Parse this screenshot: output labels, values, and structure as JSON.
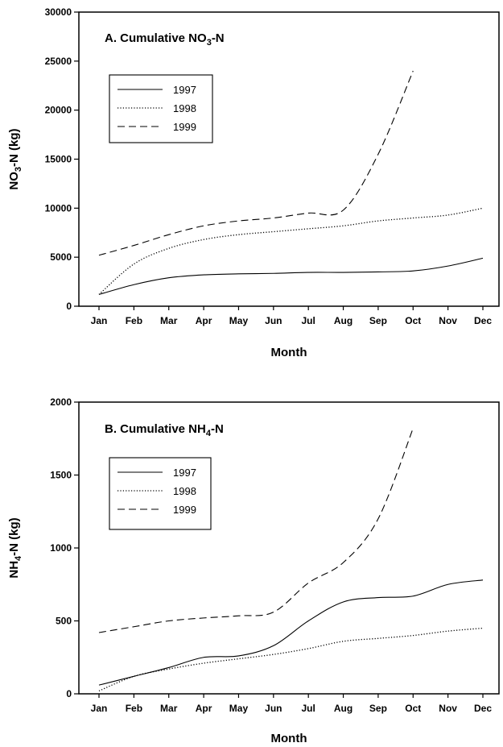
{
  "chart_data": [
    {
      "type": "line",
      "title": "A.  Cumulative NO3-N",
      "title_parts": {
        "prefix": "A.  Cumulative NO",
        "sub": "3",
        "suffix": "-N"
      },
      "xlabel": "Month",
      "ylabel": "NO3-N (kg)",
      "ylabel_parts": {
        "prefix": "NO",
        "sub": "3",
        "suffix": "-N (kg)"
      },
      "categories": [
        "Jan",
        "Feb",
        "Mar",
        "Apr",
        "May",
        "Jun",
        "Jul",
        "Aug",
        "Sep",
        "Oct",
        "Nov",
        "Dec"
      ],
      "ylim": [
        0,
        30000
      ],
      "yticks": [
        "0",
        "5000",
        "10000",
        "15000",
        "20000",
        "25000",
        "30000"
      ],
      "legend_position": "upper-left",
      "series": [
        {
          "name": "1997",
          "style": "solid",
          "values": [
            1200,
            2200,
            2900,
            3200,
            3300,
            3350,
            3450,
            3450,
            3500,
            3600,
            4100,
            4900
          ]
        },
        {
          "name": "1998",
          "style": "dotted",
          "values": [
            1200,
            4300,
            5900,
            6800,
            7300,
            7600,
            7900,
            8200,
            8700,
            9000,
            9300,
            10000
          ]
        },
        {
          "name": "1999",
          "style": "dashed",
          "values": [
            5200,
            6200,
            7300,
            8200,
            8700,
            9000,
            9500,
            9800,
            15500,
            24000,
            null,
            null
          ]
        }
      ]
    },
    {
      "type": "line",
      "title": "B.  Cumulative NH4-N",
      "title_parts": {
        "prefix": "B.  Cumulative NH",
        "sub": "4",
        "suffix": "-N"
      },
      "xlabel": "Month",
      "ylabel": "NH4-N (kg)",
      "ylabel_parts": {
        "prefix": "NH",
        "sub": "4",
        "suffix": "-N (kg)"
      },
      "categories": [
        "Jan",
        "Feb",
        "Mar",
        "Apr",
        "May",
        "Jun",
        "Jul",
        "Aug",
        "Sep",
        "Oct",
        "Nov",
        "Dec"
      ],
      "ylim": [
        0,
        2000
      ],
      "yticks": [
        "0",
        "500",
        "1000",
        "1500",
        "2000"
      ],
      "legend_position": "upper-left",
      "series": [
        {
          "name": "1997",
          "style": "solid",
          "values": [
            60,
            120,
            180,
            250,
            260,
            330,
            500,
            630,
            660,
            670,
            750,
            780
          ]
        },
        {
          "name": "1998",
          "style": "dotted",
          "values": [
            20,
            120,
            170,
            210,
            240,
            270,
            310,
            360,
            380,
            400,
            430,
            450
          ]
        },
        {
          "name": "1999",
          "style": "dashed",
          "values": [
            420,
            460,
            500,
            520,
            535,
            560,
            760,
            900,
            1200,
            1820,
            null,
            null
          ]
        }
      ]
    }
  ]
}
